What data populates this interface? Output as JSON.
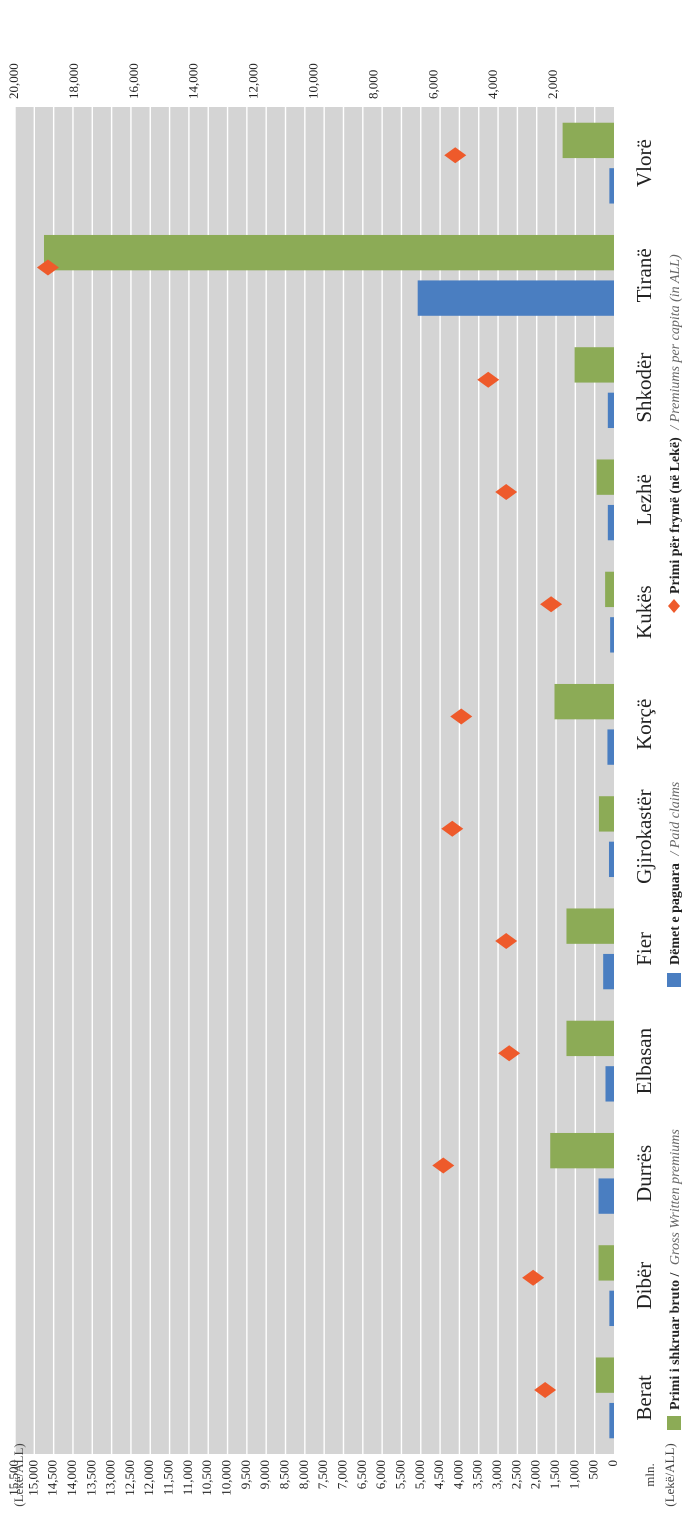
{
  "chart_data": {
    "type": "bar",
    "categories": [
      "Berat",
      "Dibër",
      "Durrës",
      "Elbasan",
      "Fier",
      "Gjirokastër",
      "Korçë",
      "Kukës",
      "Lezhë",
      "Shkodër",
      "Tiranë",
      "Vlorë"
    ],
    "series": [
      {
        "name_bold": "Primi i shkruar bruto /",
        "name_italic": "Gross Written premiums",
        "axis": "primary",
        "color": "#8CAB56",
        "values": [
          470,
          400,
          1650,
          1230,
          1230,
          390,
          1540,
          230,
          450,
          1020,
          14750,
          1330
        ]
      },
      {
        "name_bold": "Dëmet e paguara",
        "name_italic": "/ Paid claims",
        "axis": "primary",
        "color": "#4A7EC1",
        "values": [
          120,
          120,
          400,
          220,
          280,
          130,
          170,
          100,
          160,
          160,
          5080,
          120
        ]
      },
      {
        "name_bold": "Primi për frymë (në Lekë)",
        "name_italic": "/ Premiums per capita (in ALL)",
        "axis": "secondary",
        "color": "#EE5A2B",
        "marker": "diamond",
        "values": [
          2300,
          2700,
          5700,
          3500,
          3600,
          5400,
          5100,
          2100,
          3600,
          4200,
          18900,
          5300
        ]
      }
    ],
    "primary_axis": {
      "unit_top": "mln.",
      "unit_bottom": "(Lekë/ALL)",
      "range": [
        0,
        15500
      ],
      "ticks": [
        "0",
        "500",
        "1,000",
        "1,500",
        "2,000",
        "2,500",
        "3,000",
        "3,500",
        "4,000",
        "4,500",
        "5,000",
        "5,500",
        "6,000",
        "6,500",
        "7,000",
        "7,500",
        "8,000",
        "8,500",
        "9,000",
        "9,500",
        "10,000",
        "10,500",
        "11,000",
        "11,500",
        "12,000",
        "12,500",
        "13,000",
        "13,500",
        "14,000",
        "14,500",
        "15,000",
        "15,500"
      ]
    },
    "secondary_axis": {
      "unit": "(Lekë/ALL)",
      "range": [
        0,
        20000
      ],
      "ticks": [
        "2,000",
        "4,000",
        "6,000",
        "8,000",
        "10,000",
        "12,000",
        "14,000",
        "16,000",
        "18,000",
        "20,000"
      ]
    },
    "grid": true,
    "legend_position": "bottom",
    "orientation": "rotated 90° (value axis runs left to right)",
    "background": "#D4D4D4"
  }
}
